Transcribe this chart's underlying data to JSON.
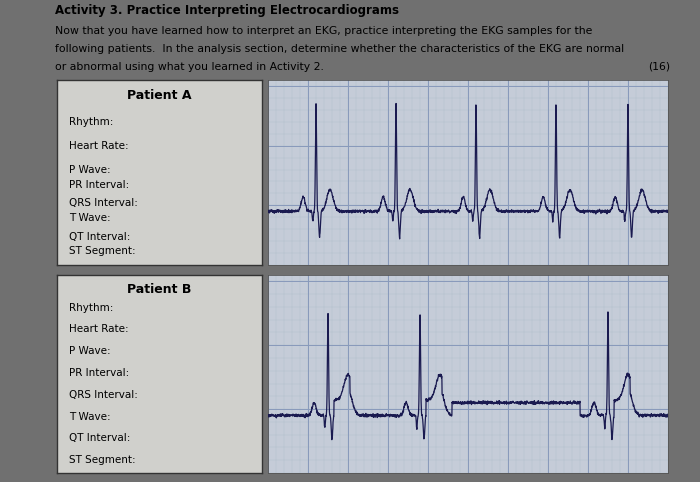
{
  "title": "Activity 3. Practice Interpreting Electrocardiograms",
  "subtitle_line1": "Now that you have learned how to interpret an EKG, practice interpreting the EKG samples for the",
  "subtitle_line2": "following patients.  In the analysis section, determine whether the characteristics of the EKG are normal",
  "subtitle_line3": "or abnormal using what you learned in Activity 2.",
  "points": "(16)",
  "bg_color": "#707070",
  "panel_bg": "#d0d0cc",
  "ekg_bg": "#c5ccd8",
  "grid_major_color": "#8899bb",
  "grid_minor_color": "#aabbc8",
  "ekg_line_color": "#1a1a50",
  "patient_a_label": "Patient A",
  "patient_b_label": "Patient B",
  "labels_a": [
    "Rhythm:",
    "Heart Rate:",
    "P Wave:",
    "PR Interval:",
    "QRS Interval:",
    "T Wave:",
    "QT Interval:",
    "ST Segment:"
  ],
  "labels_b": [
    "Rhythm:",
    "Heart Rate:",
    "P Wave:",
    "PR Interval:",
    "QRS Interval:",
    "T Wave:",
    "QT Interval:",
    "ST Segment:"
  ],
  "title_fontsize": 8.5,
  "subtitle_fontsize": 7.8,
  "label_fontsize": 7.5,
  "header_fontsize": 9.0
}
